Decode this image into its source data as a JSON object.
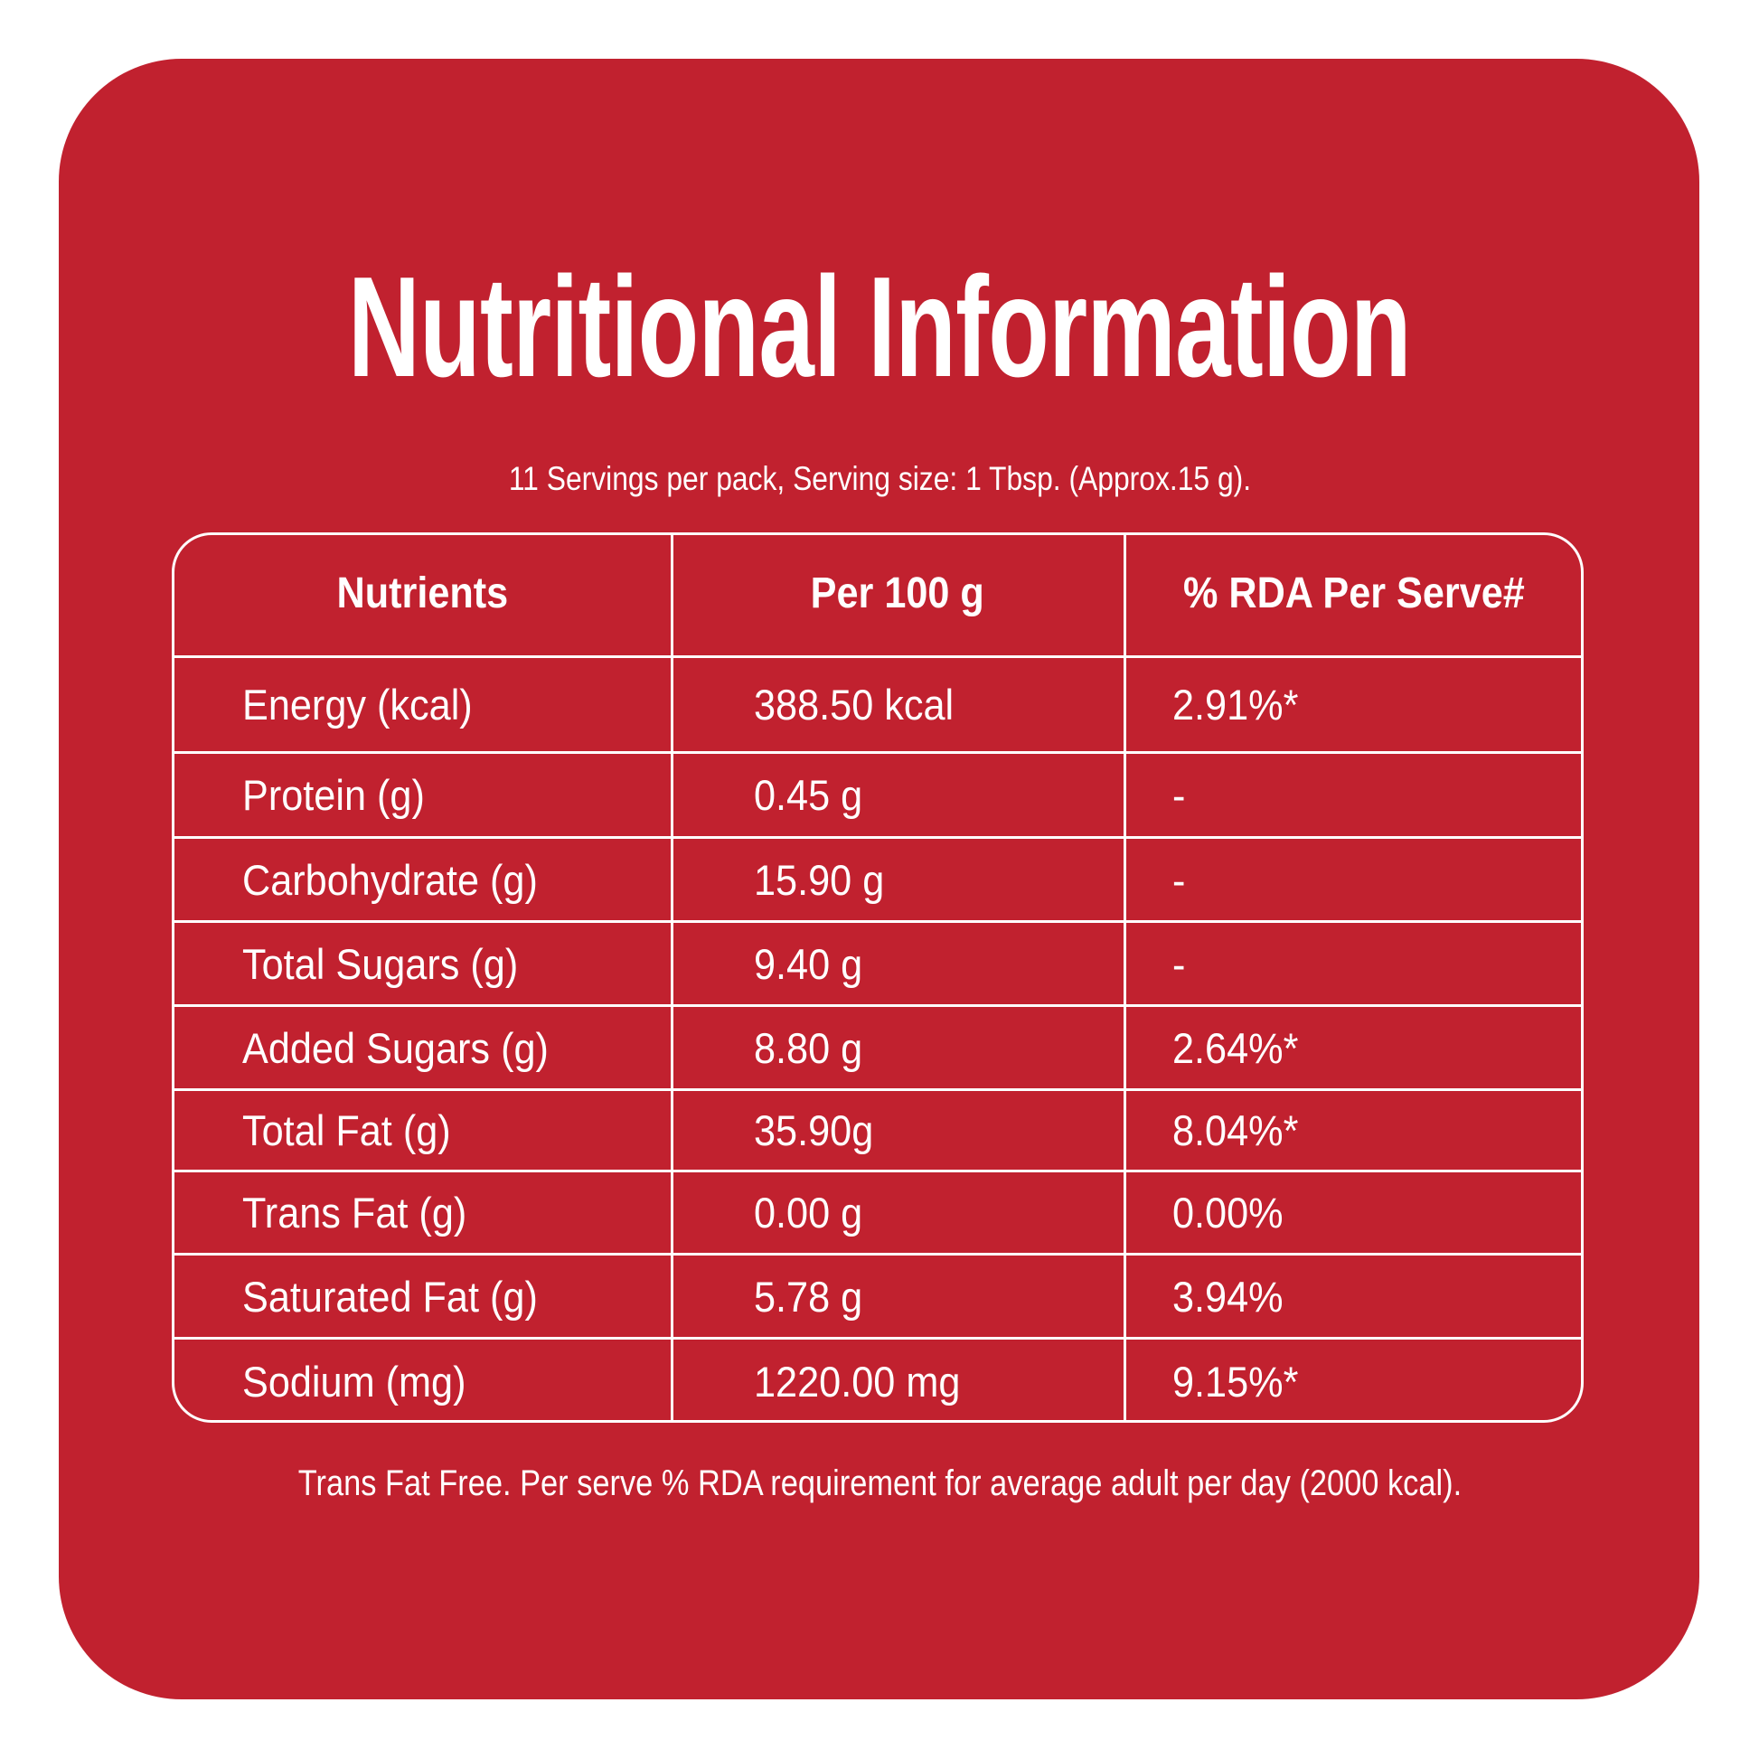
{
  "colors": {
    "background": "#C1212F",
    "text": "#FFFFFF"
  },
  "title": "Nutritional Information",
  "subtitle": "11 Servings per pack, Serving size: 1 Tbsp. (Approx.15 g).",
  "table": {
    "headers": [
      "Nutrients",
      "Per 100 g",
      "% RDA Per Serve#"
    ],
    "rows": [
      [
        "Energy (kcal)",
        "388.50 kcal",
        "2.91%*"
      ],
      [
        "Protein (g)",
        "0.45 g",
        "-"
      ],
      [
        "Carbohydrate (g)",
        "15.90 g",
        "-"
      ],
      [
        "Total Sugars (g)",
        "9.40 g",
        "-"
      ],
      [
        "Added Sugars (g)",
        "8.80 g",
        "2.64%*"
      ],
      [
        "Total Fat (g)",
        "35.90g",
        "8.04%*"
      ],
      [
        "Trans Fat (g)",
        "0.00 g",
        "0.00%"
      ],
      [
        "Saturated Fat (g)",
        "5.78 g",
        "3.94%"
      ],
      [
        "Sodium (mg)",
        "1220.00 mg",
        "9.15%*"
      ]
    ]
  },
  "footer": "Trans Fat Free. Per serve % RDA requirement for average adult per day (2000 kcal)."
}
